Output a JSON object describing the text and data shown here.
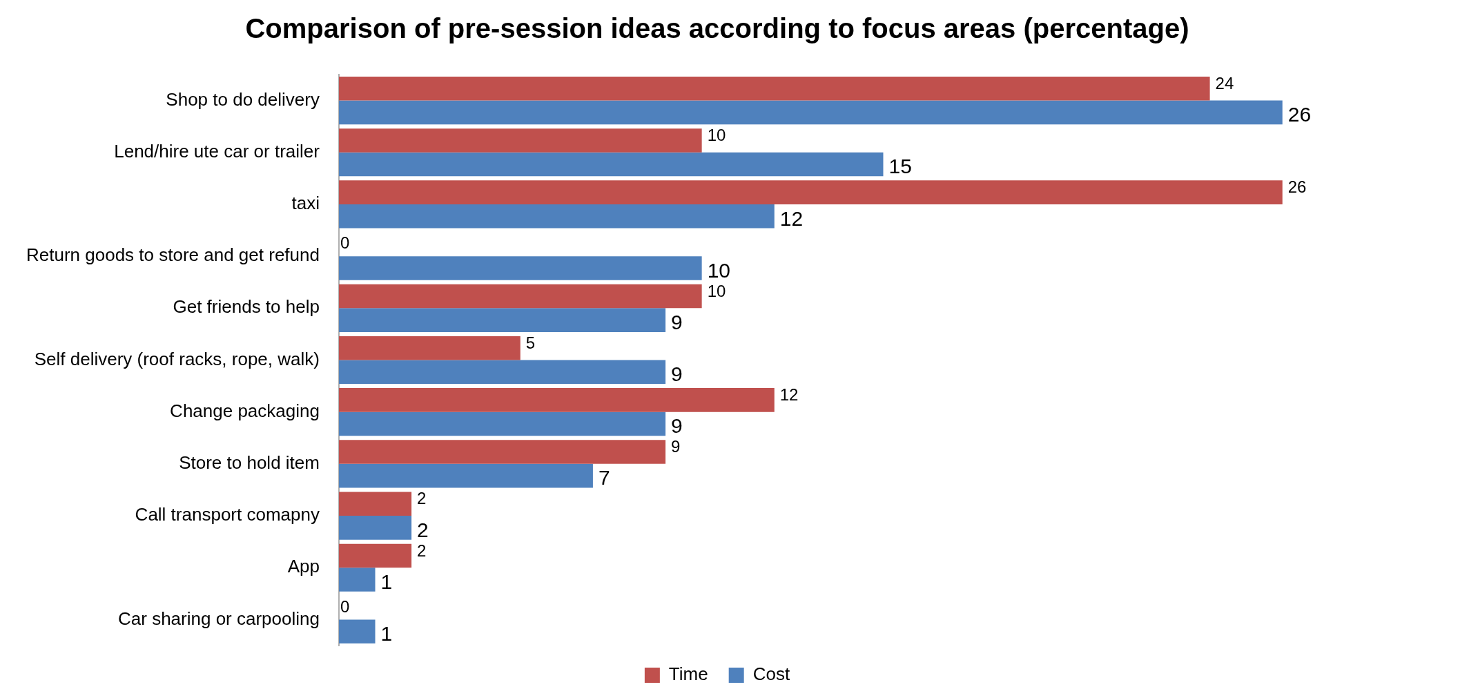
{
  "chart_data": {
    "type": "bar",
    "orientation": "horizontal",
    "title": "Comparison of pre-session ideas according to focus areas (percentage)",
    "categories": [
      "Shop to do delivery",
      "Lend/hire ute car or trailer",
      "taxi",
      "Return goods to store and get refund",
      "Get friends to help",
      "Self delivery (roof racks, rope, walk)",
      "Change packaging",
      "Store to hold item",
      "Call transport comapny",
      "App",
      "Car sharing or carpooling"
    ],
    "series": [
      {
        "name": "Time",
        "color": "#c0504d",
        "values": [
          24,
          10,
          26,
          0,
          10,
          5,
          12,
          9,
          2,
          2,
          0
        ]
      },
      {
        "name": "Cost",
        "color": "#4f81bd",
        "values": [
          26,
          15,
          12,
          10,
          9,
          9,
          9,
          7,
          2,
          1,
          1
        ]
      }
    ],
    "data_labels": true,
    "grid": false,
    "legend": "bottom"
  }
}
